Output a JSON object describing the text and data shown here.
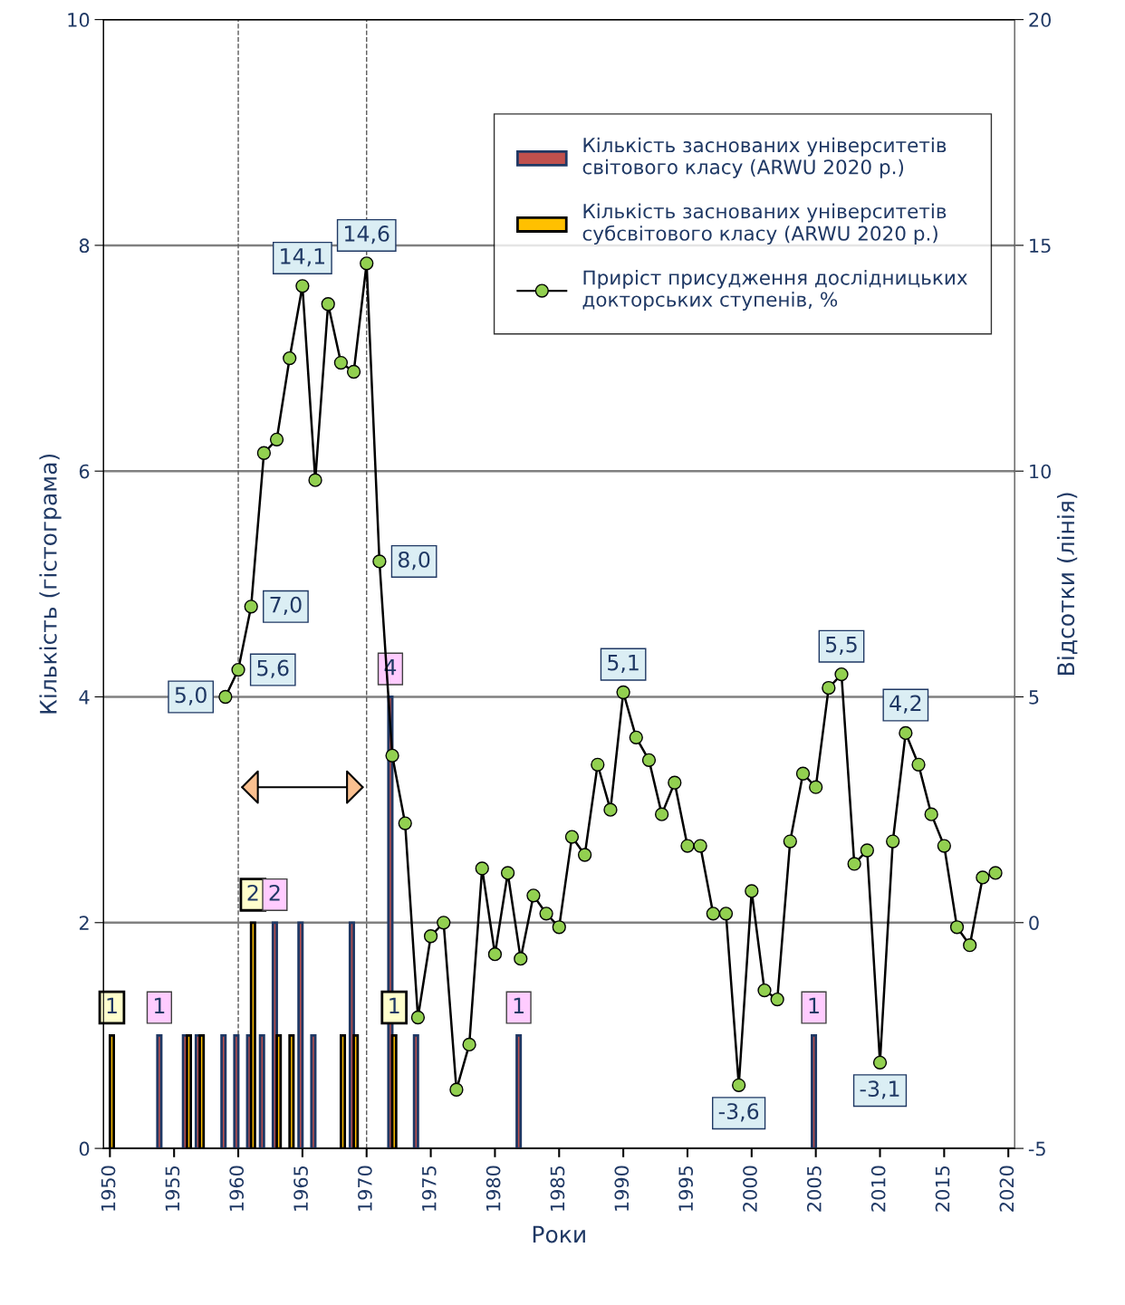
{
  "chart_data": {
    "type": "bar",
    "xlabel": "Роки",
    "ylabel": "Кількість (гістограма)",
    "y2label": "Відсотки (лінія)",
    "xlim": [
      1949.5,
      2020.5
    ],
    "xticks": [
      1950,
      1955,
      1960,
      1965,
      1970,
      1975,
      1980,
      1985,
      1990,
      1995,
      2000,
      2005,
      2010,
      2015,
      2020
    ],
    "ylim": [
      0,
      10
    ],
    "yticks": [
      0,
      2,
      4,
      6,
      8,
      10
    ],
    "y2lim": [
      -5,
      20
    ],
    "y2ticks": [
      -5,
      0,
      5,
      10,
      15,
      20
    ],
    "grid": "y",
    "legend": "top right",
    "series": [
      {
        "name": "Кількість заснованих університетів світового класу (ARWU 2020 р.)",
        "color": "#c0504d",
        "x": [
          1954,
          1956,
          1957,
          1959,
          1960,
          1961,
          1962,
          1963,
          1965,
          1966,
          1969,
          1972,
          1974,
          1982,
          2005
        ],
        "values": [
          1,
          1,
          1,
          1,
          1,
          1,
          1,
          2,
          2,
          1,
          2,
          4,
          1,
          1,
          1
        ]
      },
      {
        "name": "Кількість заснованих університетів субсвітового класу (ARWU 2020 р.)",
        "color": "#ffc000",
        "x": [
          1950,
          1956,
          1957,
          1961,
          1963,
          1964,
          1968,
          1969,
          1972
        ],
        "values": [
          1,
          1,
          1,
          2,
          1,
          1,
          1,
          1,
          1
        ]
      },
      {
        "name": "Приріст присудження дослідницьких докторських ступенів, %",
        "type": "line",
        "axis": "y2",
        "color": "#000000",
        "marker": "circle",
        "line_style": "solid",
        "x": [
          1959,
          1960,
          1961,
          1962,
          1963,
          1964,
          1965,
          1966,
          1967,
          1968,
          1969,
          1970,
          1971,
          1972,
          1973,
          1974,
          1975,
          1976,
          1977,
          1978,
          1979,
          1980,
          1981,
          1982,
          1983,
          1984,
          1985,
          1986,
          1987,
          1988,
          1989,
          1990,
          1991,
          1992,
          1993,
          1994,
          1995,
          1996,
          1997,
          1998,
          1999,
          2000,
          2001,
          2002,
          2003,
          2004,
          2005,
          2006,
          2007,
          2008,
          2009,
          2010,
          2011,
          2012,
          2013,
          2014,
          2015,
          2016,
          2017,
          2018,
          2019
        ],
        "values": [
          5.0,
          5.6,
          7.0,
          10.4,
          10.7,
          12.5,
          14.1,
          9.8,
          13.7,
          12.4,
          12.2,
          14.6,
          8.0,
          3.7,
          2.2,
          -2.1,
          -0.3,
          0.0,
          -3.7,
          -2.7,
          1.2,
          -0.7,
          1.1,
          -0.8,
          0.6,
          0.2,
          -0.1,
          1.9,
          1.5,
          3.5,
          2.5,
          5.1,
          4.1,
          3.6,
          2.4,
          3.1,
          1.7,
          1.7,
          0.2,
          0.2,
          -3.6,
          0.7,
          -1.5,
          -1.7,
          1.8,
          3.3,
          3.0,
          5.2,
          5.5,
          1.3,
          1.6,
          -3.1,
          1.8,
          4.2,
          3.5,
          2.4,
          1.7,
          -0.1,
          -0.5,
          1.0,
          1.1
        ],
        "value_labels": [
          "5,0",
          "5,6",
          "7,0",
          null,
          null,
          null,
          "14,1",
          null,
          null,
          null,
          null,
          "14,6",
          "8,0",
          null,
          null,
          null,
          null,
          null,
          null,
          null,
          null,
          null,
          null,
          null,
          null,
          null,
          null,
          null,
          null,
          null,
          null,
          "5,1",
          null,
          null,
          null,
          null,
          null,
          null,
          null,
          null,
          "-3,6",
          null,
          null,
          null,
          null,
          null,
          null,
          null,
          "5,5",
          null,
          null,
          "-3,1",
          null,
          "4,2",
          null,
          null,
          null,
          null,
          null,
          null,
          null
        ]
      }
    ],
    "ref_lines": [
      {
        "axis": "x",
        "value": 1960,
        "line_style": "dashed",
        "color": "#595959"
      },
      {
        "axis": "x",
        "value": 1970,
        "line_style": "dashed",
        "color": "#595959"
      }
    ],
    "annotations": [
      {
        "text": "1",
        "x": 1950,
        "y": 1
      },
      {
        "text": "1",
        "x": 1954,
        "y": 1
      },
      {
        "text": "2",
        "x": 1961,
        "y": 2
      },
      {
        "text": "2",
        "x": 1963,
        "y": 2
      },
      {
        "text": "4",
        "x": 1972,
        "y": 4
      },
      {
        "text": "1",
        "x": 1972,
        "y": 1
      },
      {
        "text": "1",
        "x": 1982,
        "y": 1
      },
      {
        "text": "1",
        "x": 2005,
        "y": 1
      }
    ]
  }
}
